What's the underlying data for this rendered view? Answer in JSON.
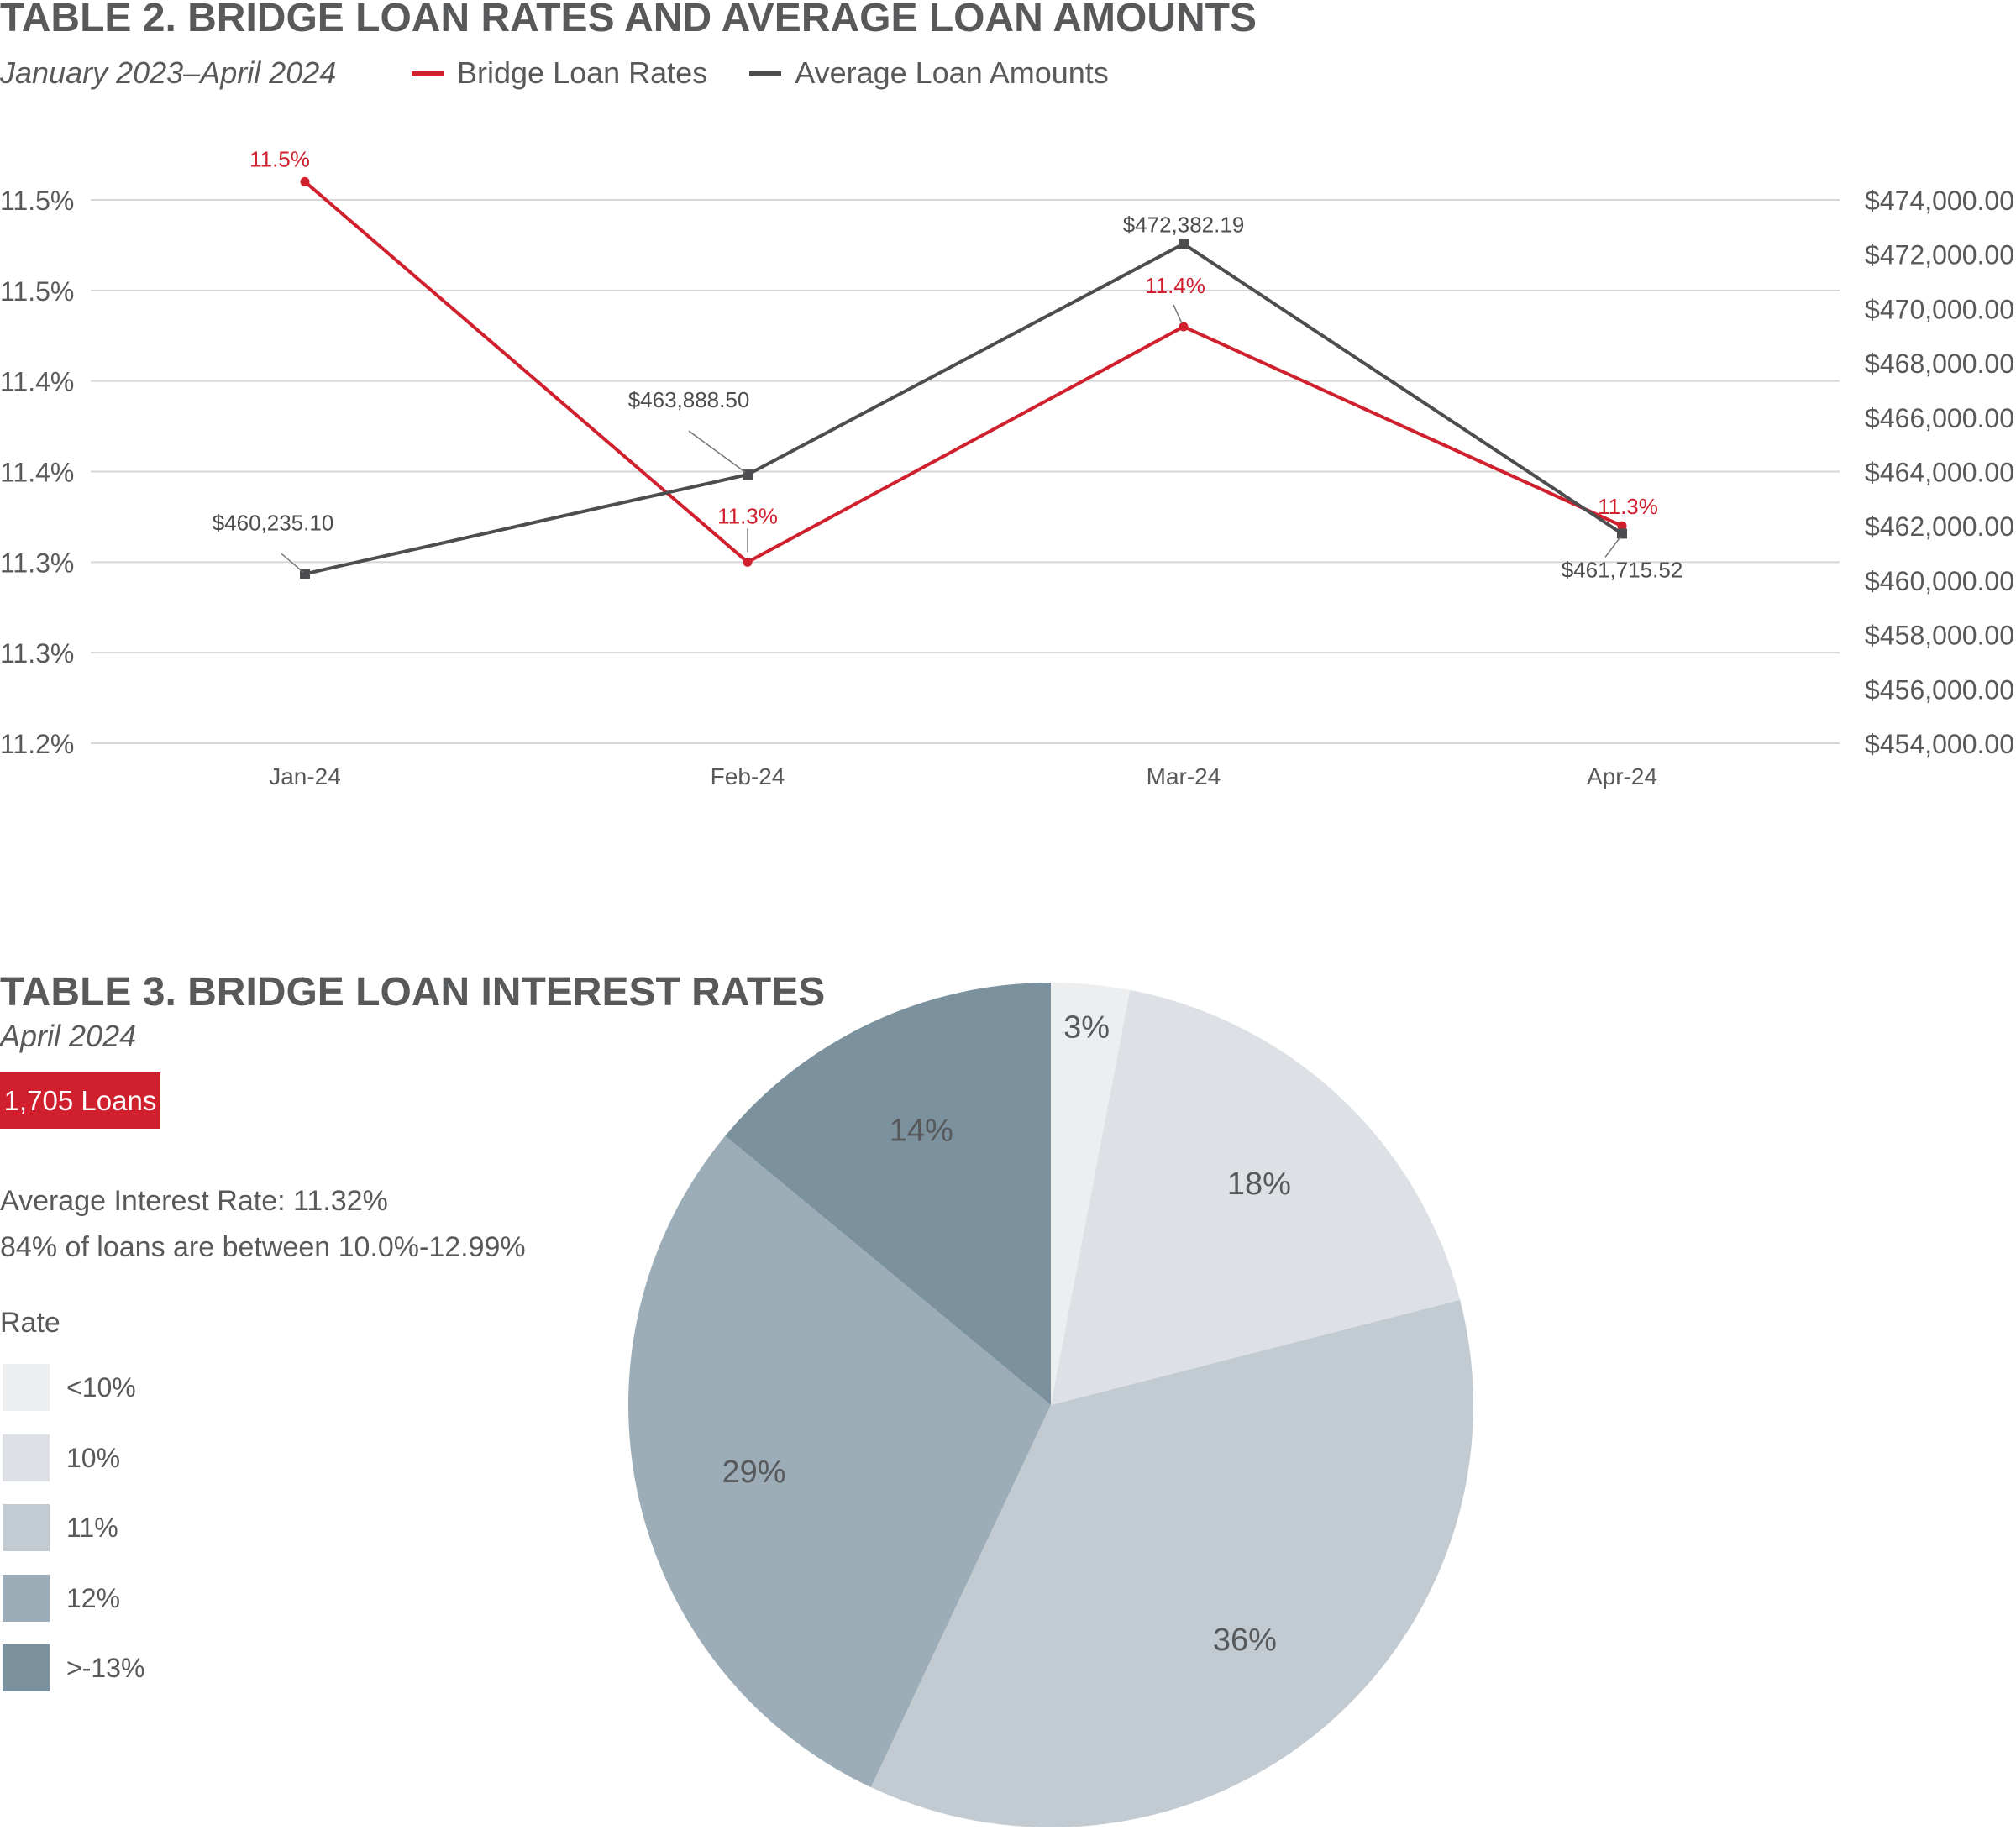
{
  "table2": {
    "title": "TABLE 2. BRIDGE LOAN RATES AND AVERAGE LOAN AMOUNTS",
    "subtitle": "January 2023–April 2024",
    "legend": [
      {
        "label": "Bridge Loan Rates",
        "color": "#d0202e"
      },
      {
        "label": "Average Loan Amounts",
        "color": "#4d4d4f"
      }
    ]
  },
  "table3": {
    "title": "TABLE 3. BRIDGE LOAN INTEREST RATES",
    "subtitle": "April 2024",
    "badge": "1,705 Loans",
    "stat1": "Average Interest Rate: 11.32%",
    "stat2": "84% of loans are between 10.0%-12.99%",
    "legend_title": "Rate"
  },
  "chart_data": [
    {
      "type": "line",
      "categories": [
        "Jan-24",
        "Feb-24",
        "Mar-24",
        "Apr-24"
      ],
      "series": [
        {
          "name": "Bridge Loan Rates",
          "axis": "left",
          "color": "#d0202e",
          "values": [
            11.51,
            11.3,
            11.43,
            11.32
          ],
          "labels": [
            "11.5%",
            "11.3%",
            "11.4%",
            "11.3%"
          ]
        },
        {
          "name": "Average Loan Amounts",
          "axis": "right",
          "color": "#4d4d4f",
          "values": [
            460235.1,
            463888.5,
            472382.19,
            461715.52
          ],
          "labels": [
            "$460,235.10",
            "$463,888.50",
            "$472,382.19",
            "$461,715.52"
          ]
        }
      ],
      "y_left": {
        "min": 11.2,
        "max": 11.5,
        "ticks": [
          "11.5%",
          "11.5%",
          "11.4%",
          "11.4%",
          "11.3%",
          "11.3%",
          "11.2%"
        ]
      },
      "y_right": {
        "min": 454000,
        "max": 474000,
        "ticks": [
          "$474,000.00",
          "$472,000.00",
          "$470,000.00",
          "$468,000.00",
          "$466,000.00",
          "$464,000.00",
          "$462,000.00",
          "$460,000.00",
          "$458,000.00",
          "$456,000.00",
          "$454,000.00"
        ]
      },
      "grid": true,
      "legend_position": "top"
    },
    {
      "type": "pie",
      "slices": [
        {
          "label": "<10%",
          "value": 3,
          "text": "3%",
          "color": "#eceef0"
        },
        {
          "label": "10%",
          "value": 18,
          "text": "18%",
          "color": "#dde1e5"
        },
        {
          "label": "11%",
          "value": 36,
          "text": "36%",
          "color": "#c3cbd2"
        },
        {
          "label": "12%",
          "value": 29,
          "text": "29%",
          "color": "#9cadb8"
        },
        {
          "label": ">-13%",
          "value": 14,
          "text": "14%",
          "color": "#7b929e"
        }
      ]
    }
  ]
}
